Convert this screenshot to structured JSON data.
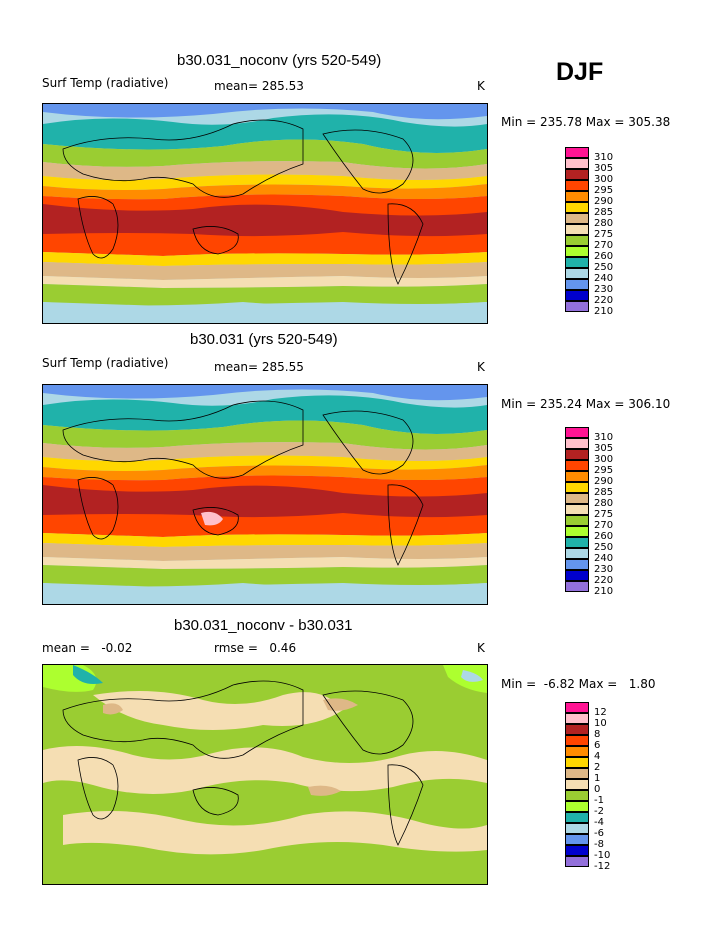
{
  "season": "DJF",
  "panels": [
    {
      "title": "b30.031_noconv (yrs 520-549)",
      "left_label": "Surf Temp (radiative)",
      "mid_label": "mean= 285.53",
      "units": "K",
      "minmax": "Min = 235.78 Max = 305.38",
      "legend": [
        "310",
        "305",
        "300",
        "295",
        "290",
        "285",
        "280",
        "275",
        "270",
        "260",
        "250",
        "240",
        "230",
        "220",
        "210"
      ]
    },
    {
      "title": "b30.031 (yrs 520-549)",
      "left_label": "Surf Temp (radiative)",
      "mid_label": "mean= 285.55",
      "units": "K",
      "minmax": "Min = 235.24 Max = 306.10",
      "legend": [
        "310",
        "305",
        "300",
        "295",
        "290",
        "285",
        "280",
        "275",
        "270",
        "260",
        "250",
        "240",
        "230",
        "220",
        "210"
      ]
    },
    {
      "title": "b30.031_noconv - b30.031",
      "left_label": "mean =   -0.02",
      "mid_label": "rmse =   0.46",
      "units": "K",
      "minmax": "Min =  -6.82 Max =   1.80",
      "legend": [
        "12",
        "10",
        "8",
        "6",
        "4",
        "2",
        "1",
        "0",
        "-1",
        "-2",
        "-4",
        "-6",
        "-8",
        "-10",
        "-12"
      ]
    }
  ],
  "legend_colors": [
    "#ff1493",
    "#ffc0cb",
    "#b22222",
    "#ff4500",
    "#ff8c00",
    "#ffd700",
    "#deb887",
    "#f5deb3",
    "#9acd32",
    "#adff2f",
    "#20b2aa",
    "#add8e6",
    "#6495ed",
    "#0000cd",
    "#9370db"
  ]
}
